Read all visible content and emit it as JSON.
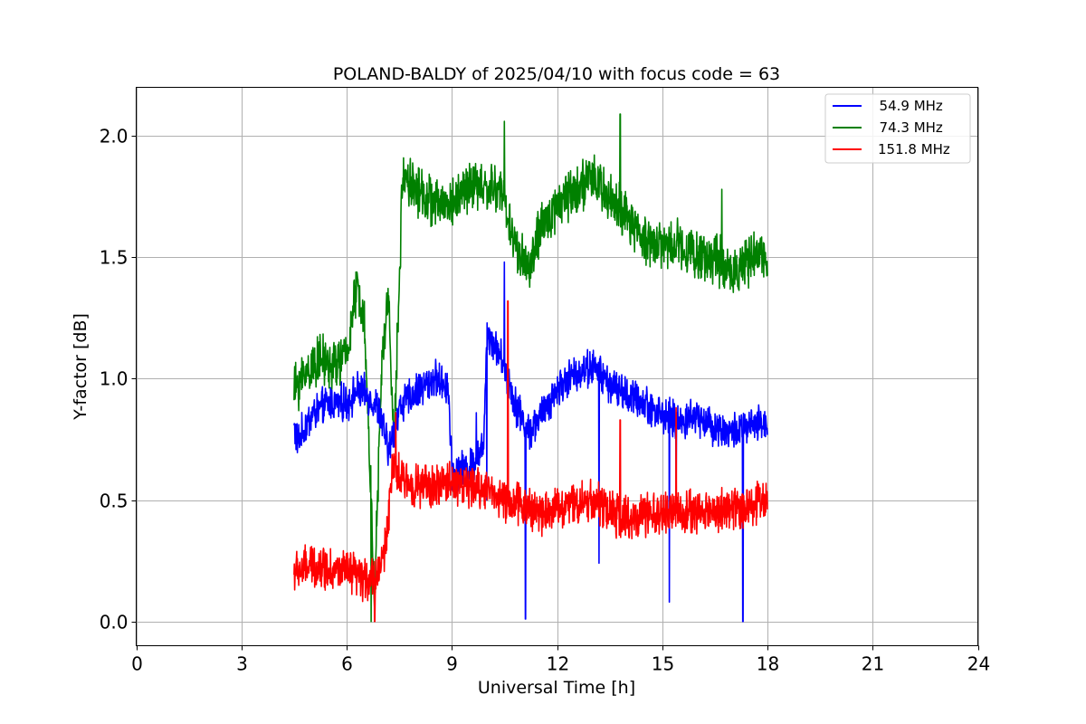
{
  "chart_data": {
    "type": "line",
    "title": "POLAND-BALDY of 2025/04/10 with focus code = 63",
    "xlabel": "Universal Time [h]",
    "ylabel": "Y-factor [dB]",
    "xlim": [
      0,
      24
    ],
    "ylim": [
      -0.1,
      2.2
    ],
    "xticks": [
      0,
      3,
      6,
      9,
      12,
      15,
      18,
      21,
      24
    ],
    "xtick_labels": [
      "0",
      "3",
      "6",
      "9",
      "12",
      "15",
      "18",
      "21",
      "24"
    ],
    "yticks": [
      0.0,
      0.5,
      1.0,
      1.5,
      2.0
    ],
    "ytick_labels": [
      "0.0",
      "0.5",
      "1.0",
      "1.5",
      "2.0"
    ],
    "grid": true,
    "legend_position": "top-right",
    "series": [
      {
        "name": "  54.9 MHz",
        "color": "#0000ff",
        "noise": 0.06,
        "x": [
          4.5,
          4.6,
          5.0,
          5.5,
          6.0,
          6.3,
          6.6,
          6.9,
          7.2,
          7.5,
          8.0,
          8.5,
          8.9,
          9.0,
          9.5,
          9.9,
          10.0,
          10.3,
          10.5,
          10.8,
          11.2,
          11.6,
          12.0,
          12.5,
          13.0,
          13.5,
          14.0,
          14.5,
          15.0,
          15.5,
          16.0,
          16.5,
          17.0,
          17.5,
          18.0
        ],
        "y": [
          0.8,
          0.74,
          0.85,
          0.9,
          0.9,
          0.95,
          0.93,
          0.88,
          0.7,
          0.88,
          0.95,
          1.0,
          0.97,
          0.62,
          0.63,
          0.72,
          1.2,
          1.12,
          1.05,
          0.9,
          0.78,
          0.86,
          0.96,
          1.02,
          1.05,
          0.98,
          0.93,
          0.9,
          0.85,
          0.82,
          0.85,
          0.8,
          0.78,
          0.8,
          0.82
        ],
        "spikes": [
          [
            10.5,
            1.48
          ],
          [
            11.1,
            0.01
          ],
          [
            13.2,
            0.24
          ],
          [
            15.2,
            0.08
          ],
          [
            15.4,
            0.52
          ],
          [
            17.3,
            0.0
          ],
          [
            9.7,
            0.86
          ],
          [
            10.0,
            0.5
          ]
        ]
      },
      {
        "name": "  74.3 MHz",
        "color": "#008000",
        "noise": 0.08,
        "x": [
          4.5,
          4.8,
          5.2,
          5.6,
          6.0,
          6.3,
          6.5,
          6.7,
          6.8,
          7.0,
          7.2,
          7.35,
          7.6,
          8.0,
          8.5,
          9.0,
          9.5,
          10.0,
          10.4,
          10.8,
          11.2,
          11.5,
          12.0,
          12.5,
          13.0,
          13.5,
          14.0,
          14.5,
          15.0,
          15.5,
          16.0,
          16.5,
          17.0,
          17.5,
          18.0
        ],
        "y": [
          0.95,
          1.02,
          1.08,
          1.05,
          1.1,
          1.38,
          1.25,
          0.5,
          0.1,
          1.05,
          1.35,
          0.7,
          1.85,
          1.78,
          1.72,
          1.72,
          1.8,
          1.78,
          1.78,
          1.55,
          1.45,
          1.6,
          1.72,
          1.78,
          1.82,
          1.75,
          1.65,
          1.58,
          1.55,
          1.56,
          1.5,
          1.5,
          1.44,
          1.48,
          1.52
        ],
        "spikes": [
          [
            13.8,
            2.09
          ],
          [
            6.7,
            0.0
          ],
          [
            10.5,
            2.06
          ],
          [
            16.7,
            1.78
          ]
        ]
      },
      {
        "name": "151.8 MHz",
        "color": "#ff0000",
        "noise": 0.07,
        "x": [
          4.5,
          5.0,
          5.5,
          6.0,
          6.5,
          6.9,
          7.1,
          7.3,
          7.6,
          8.0,
          8.5,
          9.0,
          9.5,
          10.0,
          10.5,
          11.0,
          11.5,
          12.0,
          12.5,
          13.0,
          13.5,
          14.0,
          14.5,
          15.0,
          15.5,
          16.0,
          16.5,
          17.0,
          17.5,
          18.0
        ],
        "y": [
          0.2,
          0.23,
          0.22,
          0.2,
          0.17,
          0.2,
          0.3,
          0.62,
          0.58,
          0.56,
          0.55,
          0.58,
          0.55,
          0.55,
          0.5,
          0.48,
          0.45,
          0.47,
          0.49,
          0.5,
          0.45,
          0.42,
          0.43,
          0.44,
          0.45,
          0.45,
          0.46,
          0.46,
          0.48,
          0.5
        ],
        "spikes": [
          [
            10.6,
            1.32
          ],
          [
            13.8,
            0.83
          ],
          [
            15.4,
            0.88
          ],
          [
            6.8,
            0.0
          ],
          [
            7.4,
            0.86
          ]
        ]
      }
    ]
  }
}
